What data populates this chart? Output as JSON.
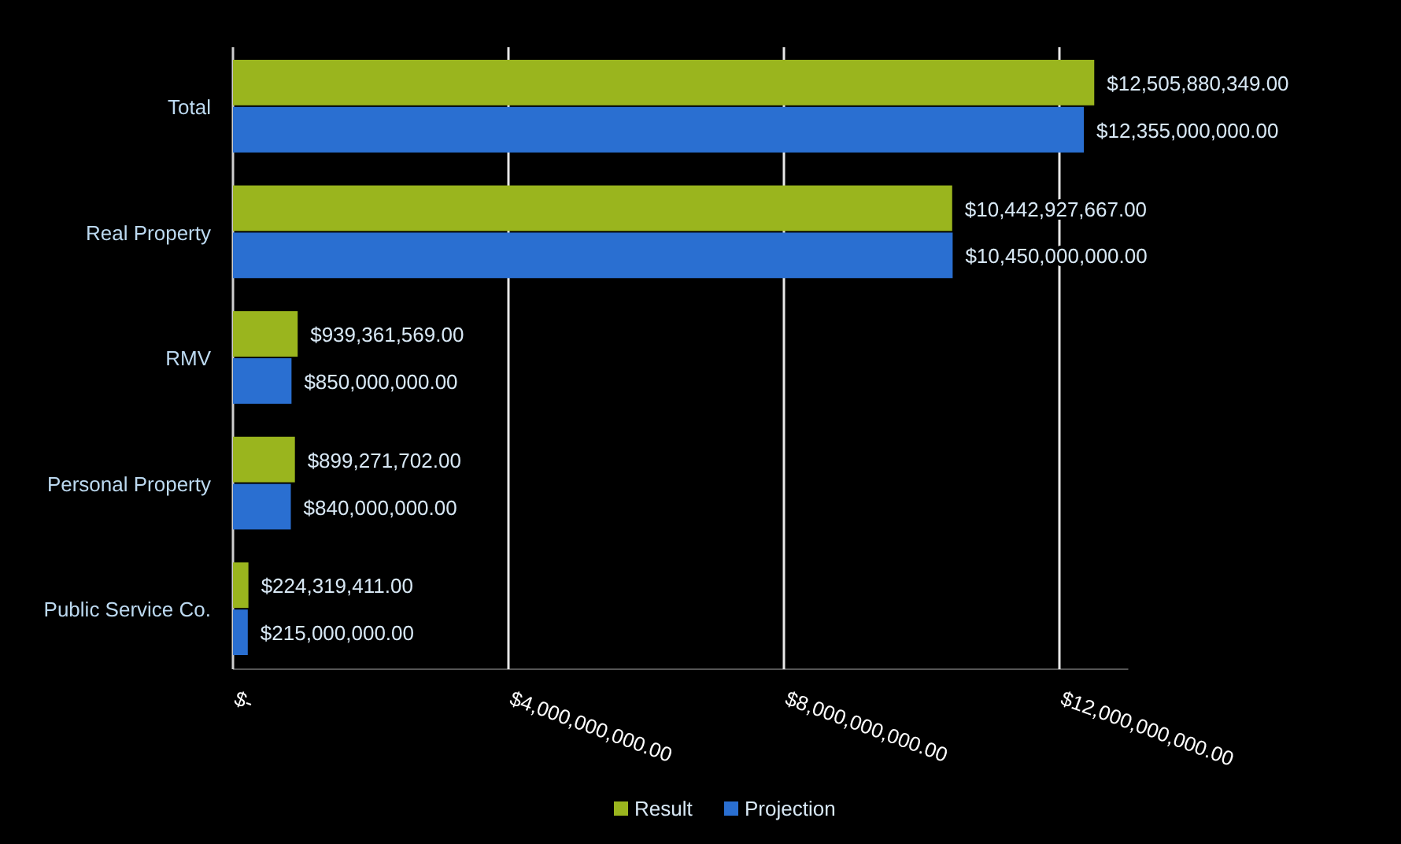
{
  "chart_data": {
    "type": "bar",
    "orientation": "horizontal",
    "categories": [
      "Total",
      "Real Property",
      "RMV",
      "Personal Property",
      "Public Service Co."
    ],
    "series": [
      {
        "name": "Result",
        "color": "#9ab51e",
        "values": [
          12505880349,
          10442927667,
          939361569,
          899271702,
          224319411
        ],
        "value_labels": [
          "$12,505,880,349.00",
          "$10,442,927,667.00",
          "$939,361,569.00",
          "$899,271,702.00",
          "$224,319,411.00"
        ]
      },
      {
        "name": "Projection",
        "color": "#2a6fd1",
        "values": [
          12355000000,
          10450000000,
          850000000,
          840000000,
          215000000
        ],
        "value_labels": [
          "$12,355,000,000.00",
          "$10,450,000,000.00",
          "$850,000,000.00",
          "$840,000,000.00",
          "$215,000,000.00"
        ]
      }
    ],
    "xlim": [
      0,
      13000000000
    ],
    "xticks": [
      {
        "value": 0,
        "label": "$-"
      },
      {
        "value": 4000000000,
        "label": "$4,000,000,000.00"
      },
      {
        "value": 8000000000,
        "label": "$8,000,000,000.00"
      },
      {
        "value": 12000000000,
        "label": "$12,000,000,000.00"
      }
    ],
    "grid": "x",
    "legend": "bottom"
  }
}
